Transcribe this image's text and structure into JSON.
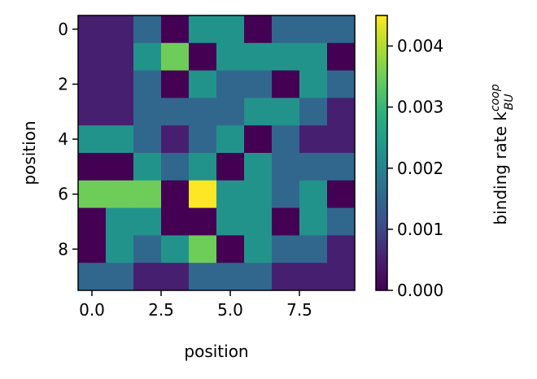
{
  "chart_data": {
    "type": "heatmap",
    "title": "",
    "xlabel": "position",
    "ylabel": "position",
    "xticks": [
      {
        "value": 0.0,
        "label": "0.0"
      },
      {
        "value": 2.5,
        "label": "2.5"
      },
      {
        "value": 5.0,
        "label": "5.0"
      },
      {
        "value": 7.5,
        "label": "7.5"
      }
    ],
    "yticks": [
      {
        "value": 0,
        "label": "0"
      },
      {
        "value": 2,
        "label": "2"
      },
      {
        "value": 4,
        "label": "4"
      },
      {
        "value": 6,
        "label": "6"
      },
      {
        "value": 8,
        "label": "8"
      }
    ],
    "xlim": [
      -0.5,
      9.5
    ],
    "ylim": [
      9.5,
      -0.5
    ],
    "colormap": "viridis",
    "colorbar": {
      "label": "binding rate k",
      "label_sup": "coop",
      "label_sub": "BU",
      "range": [
        0,
        0.0045
      ],
      "ticks": [
        {
          "value": 0.0,
          "label": "0.000"
        },
        {
          "value": 0.001,
          "label": "0.001"
        },
        {
          "value": 0.002,
          "label": "0.002"
        },
        {
          "value": 0.003,
          "label": "0.003"
        },
        {
          "value": 0.004,
          "label": "0.004"
        }
      ]
    },
    "z": [
      [
        0.0005,
        0.0005,
        0.0015,
        0.0,
        0.0023,
        0.0023,
        0.0,
        0.0015,
        0.0015,
        0.0015
      ],
      [
        0.0005,
        0.0005,
        0.0023,
        0.0035,
        0.0,
        0.0023,
        0.0023,
        0.0023,
        0.0023,
        0.0
      ],
      [
        0.0005,
        0.0005,
        0.0015,
        0.0,
        0.0023,
        0.0015,
        0.0015,
        0.0,
        0.0023,
        0.0015
      ],
      [
        0.0005,
        0.0005,
        0.0015,
        0.0015,
        0.0015,
        0.0015,
        0.0023,
        0.0023,
        0.0015,
        0.0005
      ],
      [
        0.0023,
        0.0023,
        0.0015,
        0.0005,
        0.0015,
        0.0023,
        0.0,
        0.0015,
        0.0005,
        0.0005
      ],
      [
        0.0,
        0.0,
        0.0023,
        0.0015,
        0.0023,
        0.0,
        0.0023,
        0.0015,
        0.0015,
        0.0015
      ],
      [
        0.0035,
        0.0035,
        0.0035,
        0.0,
        0.0045,
        0.0023,
        0.0023,
        0.0015,
        0.0023,
        0.0
      ],
      [
        0.0,
        0.0023,
        0.0023,
        0.0,
        0.0,
        0.0023,
        0.0023,
        0.0,
        0.0023,
        0.0015
      ],
      [
        0.0,
        0.0023,
        0.0015,
        0.0023,
        0.0035,
        0.0,
        0.0023,
        0.0015,
        0.0015,
        0.0005
      ],
      [
        0.0015,
        0.0015,
        0.0005,
        0.0005,
        0.0015,
        0.0015,
        0.0015,
        0.0005,
        0.0005,
        0.0005
      ]
    ]
  }
}
